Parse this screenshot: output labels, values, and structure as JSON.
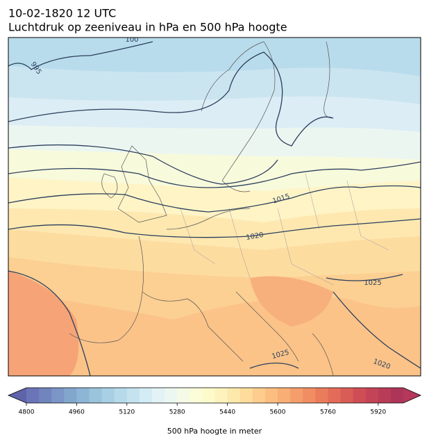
{
  "title": "10-02-1820 12 UTC",
  "subtitle": "Luchtdruk op zeeniveau in hPa en 500 hPa hoogte",
  "isobar_labels": [
    "100",
    "995",
    "1015",
    "1020",
    "1025",
    "1025",
    "1020"
  ],
  "colorbar": {
    "label": "500 hPa hoogte in meter",
    "range": [
      4800,
      6000
    ],
    "ticks": [
      4800,
      4960,
      5120,
      5280,
      5440,
      5600,
      5760,
      5920
    ],
    "colors": [
      "#6a75b8",
      "#7184be",
      "#7a95c6",
      "#83a6cd",
      "#8db5d5",
      "#9ac3dc",
      "#a8cfe3",
      "#b6daea",
      "#c5e3ef",
      "#d4ecf4",
      "#e2f2f6",
      "#edf7f2",
      "#f5fae6",
      "#fbfcd8",
      "#fefbcb",
      "#fef3bc",
      "#fee9ac",
      "#fedc9c",
      "#fdcd8d",
      "#fbbe80",
      "#f8ae75",
      "#f59e6c",
      "#f08d63",
      "#ea7c5c",
      "#e36c58",
      "#da5c56",
      "#cf4e56",
      "#c34457",
      "#b83c58",
      "#ad355a"
    ],
    "under_color": "#5f63aa",
    "over_color": "#b5385a"
  }
}
